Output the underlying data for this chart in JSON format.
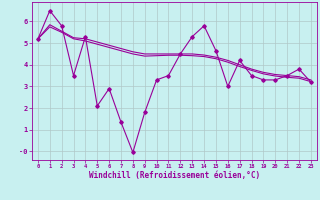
{
  "xlabel": "Windchill (Refroidissement éolien,°C)",
  "bg_color": "#c8f0f0",
  "line_color": "#990099",
  "grid_color": "#b0c8c8",
  "hours": [
    0,
    1,
    2,
    3,
    4,
    5,
    6,
    7,
    8,
    9,
    10,
    11,
    12,
    13,
    14,
    15,
    16,
    17,
    18,
    19,
    20,
    21,
    22,
    23
  ],
  "windchill": [
    5.2,
    6.5,
    5.8,
    3.5,
    5.3,
    2.1,
    2.9,
    1.35,
    -0.05,
    1.8,
    3.3,
    3.5,
    4.5,
    5.3,
    5.8,
    4.65,
    3.0,
    4.2,
    3.5,
    3.3,
    3.3,
    3.5,
    3.8,
    3.2
  ],
  "trend1": [
    5.2,
    5.85,
    5.55,
    5.25,
    5.2,
    5.05,
    4.9,
    4.75,
    4.6,
    4.5,
    4.5,
    4.5,
    4.5,
    4.5,
    4.45,
    4.35,
    4.2,
    4.0,
    3.8,
    3.65,
    3.55,
    3.5,
    3.45,
    3.3
  ],
  "trend2": [
    5.2,
    5.75,
    5.5,
    5.2,
    5.1,
    4.95,
    4.8,
    4.65,
    4.5,
    4.4,
    4.42,
    4.44,
    4.44,
    4.42,
    4.38,
    4.28,
    4.12,
    3.92,
    3.74,
    3.58,
    3.48,
    3.42,
    3.38,
    3.22
  ],
  "ylim": [
    -0.4,
    6.9
  ],
  "xlim": [
    -0.5,
    23.5
  ],
  "yticks": [
    0,
    1,
    2,
    3,
    4,
    5,
    6
  ],
  "ytick_labels": [
    "-0",
    "1",
    "2",
    "3",
    "4",
    "5",
    "6"
  ]
}
